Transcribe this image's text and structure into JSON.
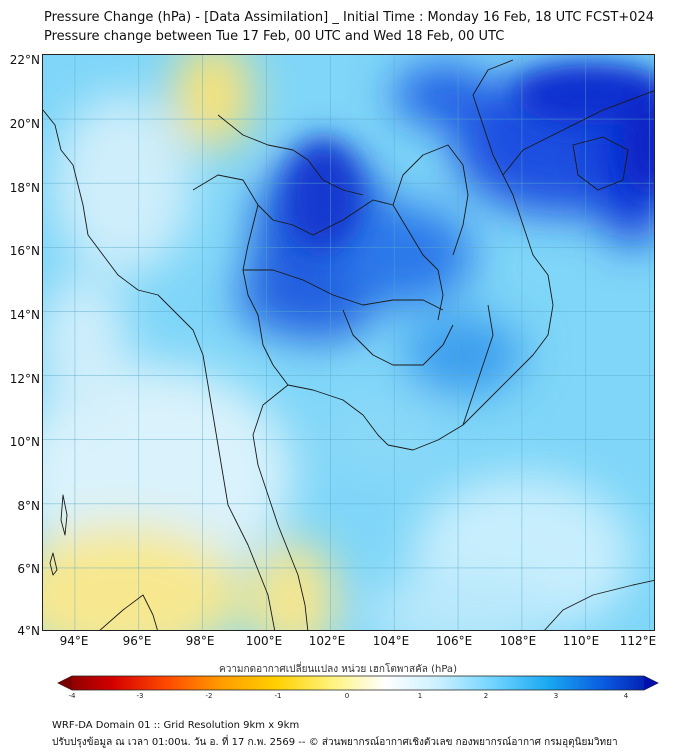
{
  "header": {
    "title_line1": "Pressure Change (hPa) - [Data Assimilation] _ Initial Time : Monday 16 Feb, 18 UTC FCST+024",
    "title_line2": "Pressure change between Tue 17 Feb, 00 UTC and Wed 18 Feb, 00 UTC"
  },
  "map": {
    "lat_labels": [
      "22°N",
      "20°N",
      "18°N",
      "16°N",
      "14°N",
      "12°N",
      "10°N",
      "8°N",
      "6°N",
      "4°N"
    ],
    "lon_labels": [
      "94°E",
      "96°E",
      "98°E",
      "100°E",
      "102°E",
      "104°E",
      "106°E",
      "108°E",
      "110°E",
      "112°E"
    ],
    "lat_range": [
      4,
      22
    ],
    "lon_range": [
      93,
      112.2
    ],
    "colors": {
      "background_field": "#7fd6f8",
      "strong_fall": "#1a34d6",
      "weak_fall": "#bfeaff",
      "rise": "#f7e27a",
      "border_lines": "#222222"
    }
  },
  "colorbar": {
    "title": "ความกดอากาศเปลี่ยนแปลง หน่วย เฮกโตพาสคัล (hPa)",
    "ticks": [
      "-4",
      "-3",
      "-2",
      "-1",
      "0",
      "1",
      "2",
      "3",
      "4"
    ],
    "range": [
      -4,
      4
    ],
    "colors": [
      "#7a0000",
      "#d40000",
      "#ff4a00",
      "#ff9c00",
      "#ffd000",
      "#fff27a",
      "#ffffff",
      "#c8f0ff",
      "#6fd3ff",
      "#19a8f0",
      "#0a5be0",
      "#0010a8"
    ]
  },
  "footer": {
    "line1": "WRF-DA Domain 01 :: Grid Resolution 9km x 9km",
    "line2": "ปรับปรุงข้อมูล ณ เวลา 01:00น. วัน อ. ที่ 17 ก.พ. 2569 -- © ส่วนพยากรณ์อากาศเชิงตัวเลข กองพยากรณ์อากาศ กรมอุตุนิยมวิทยา"
  }
}
